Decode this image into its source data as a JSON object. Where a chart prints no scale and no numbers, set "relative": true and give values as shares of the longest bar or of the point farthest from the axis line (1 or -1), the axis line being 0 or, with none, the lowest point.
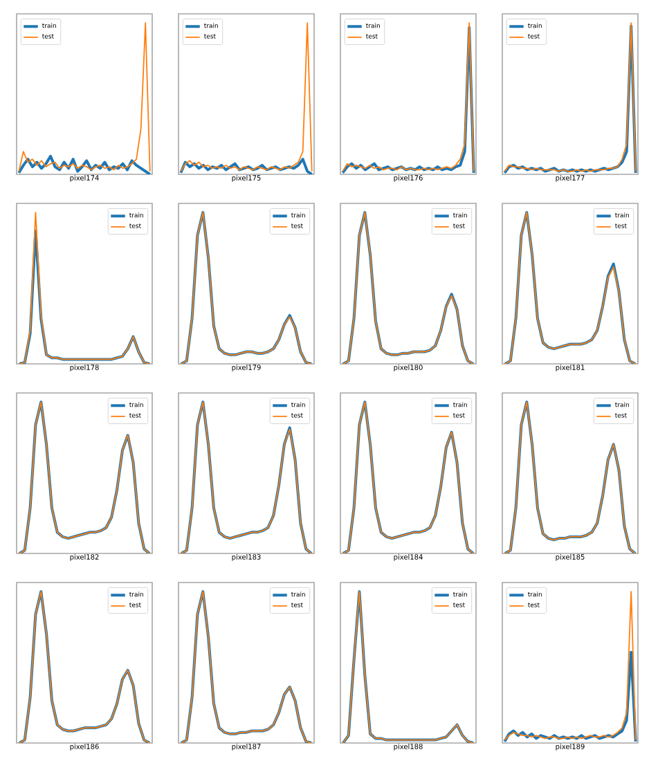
{
  "chart_data": [
    {
      "type": "line",
      "xlabel": "pixel174",
      "relative": true,
      "legend": "top left",
      "categories": [
        null,
        null,
        null,
        null,
        null,
        null,
        null,
        null,
        null,
        null,
        null,
        null,
        null,
        null,
        null,
        null,
        null,
        null,
        null,
        null,
        null,
        null,
        null,
        null,
        null,
        null,
        null,
        null,
        null,
        null
      ],
      "series": [
        {
          "name": "train",
          "color": "#1f77b4",
          "values": [
            0.01,
            0.06,
            0.1,
            0.05,
            0.08,
            0.04,
            0.07,
            0.12,
            0.05,
            0.03,
            0.08,
            0.04,
            0.1,
            0.02,
            0.05,
            0.09,
            0.03,
            0.06,
            0.04,
            0.08,
            0.03,
            0.05,
            0.04,
            0.07,
            0.03,
            0.09,
            0.06,
            0.04,
            0.02,
            0.0
          ]
        },
        {
          "name": "test",
          "color": "#ff7f0e",
          "values": [
            0.02,
            0.15,
            0.08,
            0.1,
            0.06,
            0.09,
            0.05,
            0.07,
            0.08,
            0.04,
            0.06,
            0.05,
            0.07,
            0.04,
            0.06,
            0.05,
            0.03,
            0.05,
            0.06,
            0.04,
            0.05,
            0.03,
            0.06,
            0.04,
            0.05,
            0.07,
            0.1,
            0.3,
            1.0,
            0.02
          ]
        }
      ]
    },
    {
      "type": "line",
      "xlabel": "pixel175",
      "relative": true,
      "legend": "top left",
      "categories": [
        null,
        null,
        null,
        null,
        null,
        null,
        null,
        null,
        null,
        null,
        null,
        null,
        null,
        null,
        null,
        null,
        null,
        null,
        null,
        null,
        null,
        null,
        null,
        null,
        null,
        null,
        null,
        null,
        null,
        null
      ],
      "series": [
        {
          "name": "train",
          "color": "#1f77b4",
          "values": [
            0.01,
            0.08,
            0.05,
            0.07,
            0.04,
            0.06,
            0.03,
            0.05,
            0.04,
            0.06,
            0.03,
            0.05,
            0.07,
            0.03,
            0.04,
            0.05,
            0.03,
            0.04,
            0.06,
            0.03,
            0.04,
            0.05,
            0.03,
            0.04,
            0.05,
            0.04,
            0.06,
            0.1,
            0.02,
            0.0
          ]
        },
        {
          "name": "test",
          "color": "#ff7f0e",
          "values": [
            0.02,
            0.07,
            0.09,
            0.06,
            0.08,
            0.05,
            0.06,
            0.04,
            0.05,
            0.04,
            0.06,
            0.04,
            0.05,
            0.03,
            0.05,
            0.04,
            0.03,
            0.05,
            0.04,
            0.03,
            0.05,
            0.04,
            0.03,
            0.05,
            0.04,
            0.06,
            0.08,
            0.15,
            1.0,
            0.02
          ]
        }
      ]
    },
    {
      "type": "line",
      "xlabel": "pixel176",
      "relative": true,
      "legend": "top left",
      "categories": [
        null,
        null,
        null,
        null,
        null,
        null,
        null,
        null,
        null,
        null,
        null,
        null,
        null,
        null,
        null,
        null,
        null,
        null,
        null,
        null,
        null,
        null,
        null,
        null,
        null,
        null,
        null,
        null,
        null,
        null
      ],
      "series": [
        {
          "name": "train",
          "color": "#1f77b4",
          "values": [
            0.01,
            0.05,
            0.07,
            0.04,
            0.06,
            0.03,
            0.05,
            0.07,
            0.03,
            0.04,
            0.05,
            0.03,
            0.04,
            0.05,
            0.03,
            0.04,
            0.03,
            0.05,
            0.03,
            0.04,
            0.03,
            0.05,
            0.03,
            0.04,
            0.03,
            0.05,
            0.06,
            0.15,
            0.97,
            0.01
          ]
        },
        {
          "name": "test",
          "color": "#ff7f0e",
          "values": [
            0.02,
            0.07,
            0.05,
            0.06,
            0.05,
            0.04,
            0.06,
            0.04,
            0.05,
            0.03,
            0.04,
            0.04,
            0.03,
            0.05,
            0.03,
            0.04,
            0.03,
            0.03,
            0.04,
            0.03,
            0.04,
            0.03,
            0.04,
            0.05,
            0.04,
            0.06,
            0.1,
            0.2,
            1.0,
            0.02
          ]
        }
      ]
    },
    {
      "type": "line",
      "xlabel": "pixel177",
      "relative": true,
      "legend": "top left",
      "categories": [
        null,
        null,
        null,
        null,
        null,
        null,
        null,
        null,
        null,
        null,
        null,
        null,
        null,
        null,
        null,
        null,
        null,
        null,
        null,
        null,
        null,
        null,
        null,
        null,
        null,
        null,
        null,
        null,
        null,
        null
      ],
      "series": [
        {
          "name": "train",
          "color": "#1f77b4",
          "values": [
            0.01,
            0.05,
            0.06,
            0.04,
            0.05,
            0.03,
            0.04,
            0.03,
            0.04,
            0.02,
            0.03,
            0.04,
            0.02,
            0.03,
            0.02,
            0.03,
            0.02,
            0.03,
            0.02,
            0.03,
            0.02,
            0.03,
            0.04,
            0.03,
            0.04,
            0.05,
            0.08,
            0.15,
            0.98,
            0.01
          ]
        },
        {
          "name": "test",
          "color": "#ff7f0e",
          "values": [
            0.02,
            0.06,
            0.05,
            0.05,
            0.04,
            0.04,
            0.03,
            0.04,
            0.03,
            0.03,
            0.03,
            0.03,
            0.02,
            0.03,
            0.02,
            0.02,
            0.03,
            0.02,
            0.03,
            0.02,
            0.03,
            0.03,
            0.03,
            0.04,
            0.04,
            0.05,
            0.1,
            0.2,
            1.0,
            0.02
          ]
        }
      ]
    },
    {
      "type": "line",
      "xlabel": "pixel178",
      "relative": true,
      "legend": "top right",
      "categories": [
        null,
        null,
        null,
        null,
        null,
        null,
        null,
        null,
        null,
        null,
        null,
        null,
        null,
        null,
        null,
        null,
        null,
        null,
        null,
        null,
        null,
        null,
        null,
        null,
        null
      ],
      "series": [
        {
          "name": "train",
          "color": "#1f77b4",
          "values": [
            0,
            0.01,
            0.2,
            0.88,
            0.3,
            0.06,
            0.04,
            0.04,
            0.03,
            0.03,
            0.03,
            0.03,
            0.03,
            0.03,
            0.03,
            0.03,
            0.03,
            0.03,
            0.04,
            0.05,
            0.1,
            0.18,
            0.08,
            0.01,
            0
          ]
        },
        {
          "name": "test",
          "color": "#ff7f0e",
          "values": [
            0,
            0.01,
            0.22,
            1.0,
            0.32,
            0.06,
            0.04,
            0.04,
            0.03,
            0.03,
            0.03,
            0.03,
            0.03,
            0.03,
            0.03,
            0.03,
            0.03,
            0.03,
            0.04,
            0.05,
            0.1,
            0.18,
            0.08,
            0.01,
            0
          ]
        }
      ]
    },
    {
      "type": "line",
      "xlabel": "pixel179",
      "relative": true,
      "legend": "top right",
      "categories": [
        null,
        null,
        null,
        null,
        null,
        null,
        null,
        null,
        null,
        null,
        null,
        null,
        null,
        null,
        null,
        null,
        null,
        null,
        null,
        null,
        null,
        null,
        null,
        null,
        null
      ],
      "series": [
        {
          "name": "train",
          "color": "#1f77b4",
          "values": [
            0,
            0.02,
            0.3,
            0.85,
            1.0,
            0.7,
            0.25,
            0.1,
            0.07,
            0.06,
            0.06,
            0.07,
            0.08,
            0.08,
            0.07,
            0.07,
            0.08,
            0.1,
            0.16,
            0.26,
            0.32,
            0.24,
            0.08,
            0.01,
            0
          ]
        },
        {
          "name": "test",
          "color": "#ff7f0e",
          "values": [
            0,
            0.02,
            0.3,
            0.85,
            1.0,
            0.7,
            0.25,
            0.1,
            0.07,
            0.06,
            0.06,
            0.07,
            0.08,
            0.08,
            0.07,
            0.07,
            0.08,
            0.1,
            0.16,
            0.26,
            0.31,
            0.24,
            0.08,
            0.01,
            0
          ]
        }
      ]
    },
    {
      "type": "line",
      "xlabel": "pixel180",
      "relative": true,
      "legend": "top right",
      "categories": [
        null,
        null,
        null,
        null,
        null,
        null,
        null,
        null,
        null,
        null,
        null,
        null,
        null,
        null,
        null,
        null,
        null,
        null,
        null,
        null,
        null,
        null,
        null,
        null,
        null
      ],
      "series": [
        {
          "name": "train",
          "color": "#1f77b4",
          "values": [
            0,
            0.02,
            0.3,
            0.85,
            1.0,
            0.72,
            0.28,
            0.1,
            0.07,
            0.06,
            0.06,
            0.07,
            0.07,
            0.08,
            0.08,
            0.08,
            0.09,
            0.12,
            0.22,
            0.38,
            0.46,
            0.36,
            0.12,
            0.02,
            0
          ]
        },
        {
          "name": "test",
          "color": "#ff7f0e",
          "values": [
            0,
            0.02,
            0.3,
            0.85,
            1.0,
            0.72,
            0.28,
            0.1,
            0.07,
            0.06,
            0.06,
            0.07,
            0.07,
            0.08,
            0.08,
            0.08,
            0.09,
            0.12,
            0.22,
            0.38,
            0.45,
            0.36,
            0.12,
            0.02,
            0
          ]
        }
      ]
    },
    {
      "type": "line",
      "xlabel": "pixel181",
      "relative": true,
      "legend": "top right",
      "categories": [
        null,
        null,
        null,
        null,
        null,
        null,
        null,
        null,
        null,
        null,
        null,
        null,
        null,
        null,
        null,
        null,
        null,
        null,
        null,
        null,
        null,
        null,
        null,
        null,
        null
      ],
      "series": [
        {
          "name": "train",
          "color": "#1f77b4",
          "values": [
            0,
            0.02,
            0.3,
            0.85,
            1.0,
            0.72,
            0.3,
            0.14,
            0.11,
            0.1,
            0.11,
            0.12,
            0.13,
            0.13,
            0.13,
            0.14,
            0.16,
            0.22,
            0.38,
            0.58,
            0.66,
            0.48,
            0.16,
            0.02,
            0
          ]
        },
        {
          "name": "test",
          "color": "#ff7f0e",
          "values": [
            0,
            0.02,
            0.3,
            0.85,
            1.0,
            0.72,
            0.3,
            0.14,
            0.11,
            0.1,
            0.11,
            0.12,
            0.13,
            0.13,
            0.13,
            0.14,
            0.16,
            0.22,
            0.38,
            0.57,
            0.64,
            0.48,
            0.16,
            0.02,
            0
          ]
        }
      ]
    },
    {
      "type": "line",
      "xlabel": "pixel182",
      "relative": true,
      "legend": "top right",
      "categories": [
        null,
        null,
        null,
        null,
        null,
        null,
        null,
        null,
        null,
        null,
        null,
        null,
        null,
        null,
        null,
        null,
        null,
        null,
        null,
        null,
        null,
        null,
        null,
        null,
        null
      ],
      "series": [
        {
          "name": "train",
          "color": "#1f77b4",
          "values": [
            0,
            0.02,
            0.3,
            0.85,
            1.0,
            0.72,
            0.3,
            0.14,
            0.11,
            0.1,
            0.11,
            0.12,
            0.13,
            0.14,
            0.14,
            0.15,
            0.17,
            0.24,
            0.42,
            0.68,
            0.78,
            0.6,
            0.2,
            0.03,
            0
          ]
        },
        {
          "name": "test",
          "color": "#ff7f0e",
          "values": [
            0,
            0.02,
            0.3,
            0.85,
            1.0,
            0.72,
            0.3,
            0.14,
            0.11,
            0.1,
            0.11,
            0.12,
            0.13,
            0.14,
            0.14,
            0.15,
            0.17,
            0.24,
            0.42,
            0.68,
            0.78,
            0.6,
            0.2,
            0.03,
            0
          ]
        }
      ]
    },
    {
      "type": "line",
      "xlabel": "pixel183",
      "relative": true,
      "legend": "top right",
      "categories": [
        null,
        null,
        null,
        null,
        null,
        null,
        null,
        null,
        null,
        null,
        null,
        null,
        null,
        null,
        null,
        null,
        null,
        null,
        null,
        null,
        null,
        null,
        null,
        null,
        null
      ],
      "series": [
        {
          "name": "train",
          "color": "#1f77b4",
          "values": [
            0,
            0.02,
            0.3,
            0.85,
            1.0,
            0.72,
            0.3,
            0.14,
            0.11,
            0.1,
            0.11,
            0.12,
            0.13,
            0.14,
            0.14,
            0.15,
            0.17,
            0.25,
            0.45,
            0.72,
            0.83,
            0.62,
            0.2,
            0.03,
            0
          ]
        },
        {
          "name": "test",
          "color": "#ff7f0e",
          "values": [
            0,
            0.02,
            0.3,
            0.85,
            1.0,
            0.72,
            0.3,
            0.14,
            0.11,
            0.1,
            0.11,
            0.12,
            0.13,
            0.14,
            0.14,
            0.15,
            0.17,
            0.25,
            0.45,
            0.72,
            0.82,
            0.62,
            0.2,
            0.03,
            0
          ]
        }
      ]
    },
    {
      "type": "line",
      "xlabel": "pixel184",
      "relative": true,
      "legend": "top right",
      "categories": [
        null,
        null,
        null,
        null,
        null,
        null,
        null,
        null,
        null,
        null,
        null,
        null,
        null,
        null,
        null,
        null,
        null,
        null,
        null,
        null,
        null,
        null,
        null,
        null,
        null
      ],
      "series": [
        {
          "name": "train",
          "color": "#1f77b4",
          "values": [
            0,
            0.02,
            0.3,
            0.85,
            1.0,
            0.72,
            0.3,
            0.14,
            0.11,
            0.1,
            0.11,
            0.12,
            0.13,
            0.14,
            0.14,
            0.15,
            0.17,
            0.25,
            0.44,
            0.7,
            0.8,
            0.6,
            0.2,
            0.03,
            0
          ]
        },
        {
          "name": "test",
          "color": "#ff7f0e",
          "values": [
            0,
            0.02,
            0.3,
            0.85,
            1.0,
            0.72,
            0.3,
            0.14,
            0.11,
            0.1,
            0.11,
            0.12,
            0.13,
            0.14,
            0.14,
            0.15,
            0.17,
            0.25,
            0.44,
            0.7,
            0.8,
            0.6,
            0.2,
            0.03,
            0
          ]
        }
      ]
    },
    {
      "type": "line",
      "xlabel": "pixel185",
      "relative": true,
      "legend": "top right",
      "categories": [
        null,
        null,
        null,
        null,
        null,
        null,
        null,
        null,
        null,
        null,
        null,
        null,
        null,
        null,
        null,
        null,
        null,
        null,
        null,
        null,
        null,
        null,
        null,
        null,
        null
      ],
      "series": [
        {
          "name": "train",
          "color": "#1f77b4",
          "values": [
            0,
            0.02,
            0.3,
            0.85,
            1.0,
            0.72,
            0.3,
            0.13,
            0.1,
            0.09,
            0.1,
            0.1,
            0.11,
            0.11,
            0.11,
            0.12,
            0.14,
            0.2,
            0.38,
            0.62,
            0.72,
            0.55,
            0.18,
            0.03,
            0
          ]
        },
        {
          "name": "test",
          "color": "#ff7f0e",
          "values": [
            0,
            0.02,
            0.3,
            0.85,
            1.0,
            0.72,
            0.3,
            0.13,
            0.1,
            0.09,
            0.1,
            0.1,
            0.11,
            0.11,
            0.11,
            0.12,
            0.14,
            0.2,
            0.38,
            0.62,
            0.72,
            0.55,
            0.18,
            0.03,
            0
          ]
        }
      ]
    },
    {
      "type": "line",
      "xlabel": "pixel186",
      "relative": true,
      "legend": "top right",
      "categories": [
        null,
        null,
        null,
        null,
        null,
        null,
        null,
        null,
        null,
        null,
        null,
        null,
        null,
        null,
        null,
        null,
        null,
        null,
        null,
        null,
        null,
        null,
        null,
        null,
        null
      ],
      "series": [
        {
          "name": "train",
          "color": "#1f77b4",
          "values": [
            0,
            0.02,
            0.3,
            0.85,
            1.0,
            0.72,
            0.28,
            0.12,
            0.09,
            0.08,
            0.08,
            0.09,
            0.1,
            0.1,
            0.1,
            0.11,
            0.12,
            0.16,
            0.26,
            0.42,
            0.48,
            0.38,
            0.13,
            0.02,
            0
          ]
        },
        {
          "name": "test",
          "color": "#ff7f0e",
          "values": [
            0,
            0.02,
            0.3,
            0.85,
            1.0,
            0.72,
            0.28,
            0.12,
            0.09,
            0.08,
            0.08,
            0.09,
            0.1,
            0.1,
            0.1,
            0.11,
            0.12,
            0.16,
            0.26,
            0.42,
            0.48,
            0.38,
            0.13,
            0.02,
            0
          ]
        }
      ]
    },
    {
      "type": "line",
      "xlabel": "pixel187",
      "relative": true,
      "legend": "top right",
      "categories": [
        null,
        null,
        null,
        null,
        null,
        null,
        null,
        null,
        null,
        null,
        null,
        null,
        null,
        null,
        null,
        null,
        null,
        null,
        null,
        null,
        null,
        null,
        null,
        null,
        null
      ],
      "series": [
        {
          "name": "train",
          "color": "#1f77b4",
          "values": [
            0,
            0.02,
            0.3,
            0.85,
            1.0,
            0.7,
            0.26,
            0.1,
            0.07,
            0.06,
            0.06,
            0.07,
            0.07,
            0.08,
            0.08,
            0.08,
            0.09,
            0.12,
            0.2,
            0.32,
            0.37,
            0.28,
            0.1,
            0.01,
            0
          ]
        },
        {
          "name": "test",
          "color": "#ff7f0e",
          "values": [
            0,
            0.02,
            0.3,
            0.85,
            1.0,
            0.7,
            0.26,
            0.1,
            0.07,
            0.06,
            0.06,
            0.07,
            0.07,
            0.08,
            0.08,
            0.08,
            0.09,
            0.12,
            0.2,
            0.32,
            0.37,
            0.28,
            0.1,
            0.01,
            0
          ]
        }
      ]
    },
    {
      "type": "line",
      "xlabel": "pixel188",
      "relative": true,
      "legend": "top right",
      "categories": [
        null,
        null,
        null,
        null,
        null,
        null,
        null,
        null,
        null,
        null,
        null,
        null,
        null,
        null,
        null,
        null,
        null,
        null,
        null,
        null,
        null,
        null,
        null,
        null,
        null
      ],
      "series": [
        {
          "name": "train",
          "color": "#1f77b4",
          "values": [
            0,
            0.05,
            0.55,
            1.0,
            0.45,
            0.06,
            0.03,
            0.03,
            0.02,
            0.02,
            0.02,
            0.02,
            0.02,
            0.02,
            0.02,
            0.02,
            0.02,
            0.02,
            0.03,
            0.04,
            0.08,
            0.12,
            0.05,
            0.01,
            0
          ]
        },
        {
          "name": "test",
          "color": "#ff7f0e",
          "values": [
            0,
            0.05,
            0.55,
            1.0,
            0.45,
            0.06,
            0.03,
            0.03,
            0.02,
            0.02,
            0.02,
            0.02,
            0.02,
            0.02,
            0.02,
            0.02,
            0.02,
            0.02,
            0.03,
            0.04,
            0.08,
            0.12,
            0.05,
            0.01,
            0
          ]
        }
      ]
    },
    {
      "type": "line",
      "xlabel": "pixel189",
      "relative": true,
      "legend": "top left",
      "categories": [
        null,
        null,
        null,
        null,
        null,
        null,
        null,
        null,
        null,
        null,
        null,
        null,
        null,
        null,
        null,
        null,
        null,
        null,
        null,
        null,
        null,
        null,
        null,
        null,
        null,
        null,
        null,
        null,
        null,
        null
      ],
      "series": [
        {
          "name": "train",
          "color": "#1f77b4",
          "values": [
            0.01,
            0.06,
            0.08,
            0.05,
            0.07,
            0.04,
            0.06,
            0.03,
            0.05,
            0.04,
            0.03,
            0.05,
            0.03,
            0.04,
            0.03,
            0.04,
            0.03,
            0.05,
            0.03,
            0.04,
            0.05,
            0.03,
            0.04,
            0.05,
            0.04,
            0.06,
            0.08,
            0.15,
            0.6,
            0.01
          ]
        },
        {
          "name": "test",
          "color": "#ff7f0e",
          "values": [
            0.02,
            0.05,
            0.07,
            0.06,
            0.05,
            0.05,
            0.04,
            0.05,
            0.04,
            0.03,
            0.04,
            0.04,
            0.03,
            0.03,
            0.04,
            0.03,
            0.04,
            0.03,
            0.04,
            0.05,
            0.04,
            0.04,
            0.05,
            0.04,
            0.05,
            0.07,
            0.1,
            0.2,
            1.0,
            0.02
          ]
        }
      ]
    }
  ]
}
